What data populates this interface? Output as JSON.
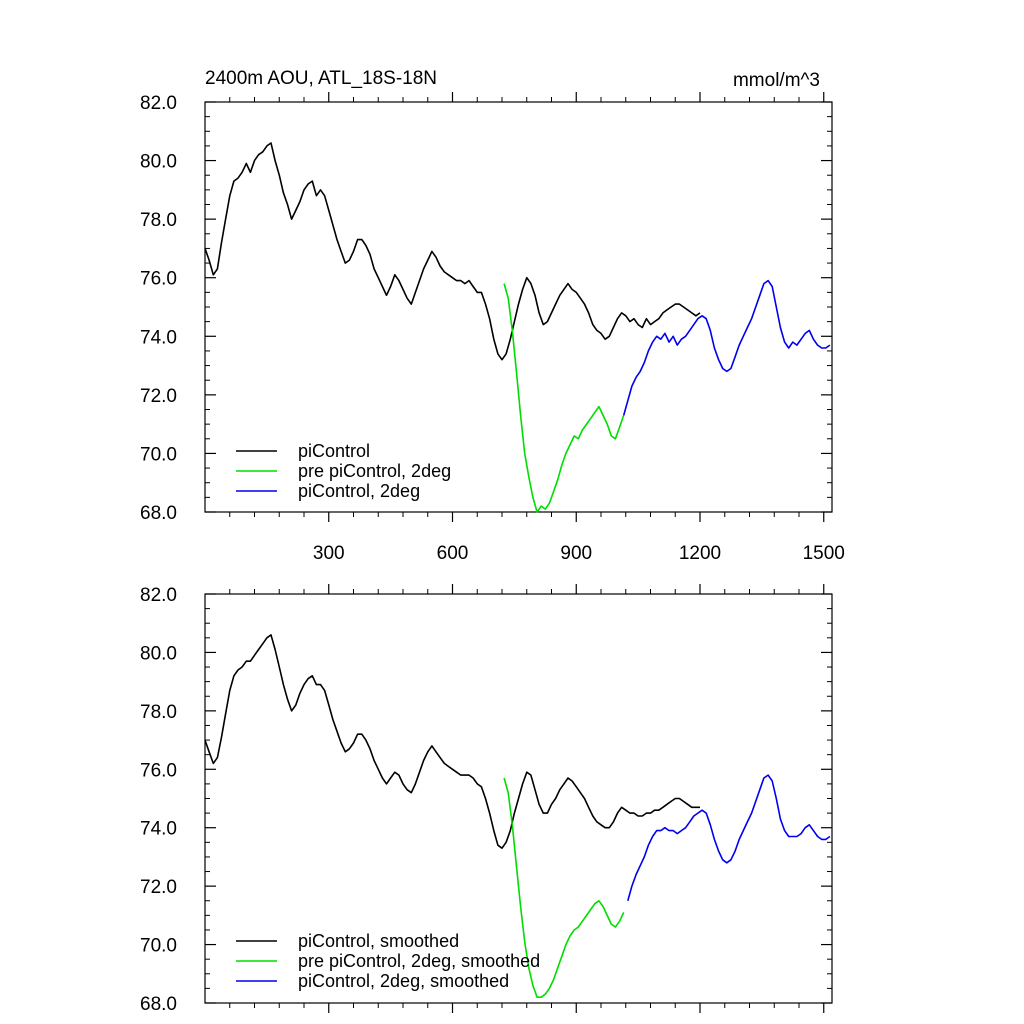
{
  "chart_data": [
    {
      "type": "line",
      "title": "2400m AOU, ATL_18S-18N",
      "units": "mmol/m^3",
      "xlim": [
        0,
        1520
      ],
      "ylim": [
        68,
        82
      ],
      "xticks": [
        300,
        600,
        900,
        1200,
        1500
      ],
      "yticks": [
        68,
        70,
        72,
        74,
        76,
        78,
        80,
        82
      ],
      "xtick_labels": [
        "300",
        "600",
        "900",
        "1200",
        "1500"
      ],
      "ytick_labels": [
        "68.0",
        "70.0",
        "72.0",
        "74.0",
        "76.0",
        "78.0",
        "80.0",
        "82.0"
      ],
      "grid": false,
      "legend": "bottom-left",
      "series": [
        {
          "name": "piControl",
          "color": "#000000",
          "x": [
            0,
            10,
            20,
            30,
            40,
            50,
            60,
            70,
            80,
            90,
            100,
            110,
            120,
            130,
            140,
            150,
            160,
            170,
            180,
            190,
            200,
            210,
            220,
            230,
            240,
            250,
            260,
            270,
            280,
            290,
            300,
            310,
            320,
            330,
            340,
            350,
            360,
            370,
            380,
            390,
            400,
            410,
            420,
            430,
            440,
            450,
            460,
            470,
            480,
            490,
            500,
            510,
            520,
            530,
            540,
            550,
            560,
            570,
            580,
            590,
            600,
            610,
            620,
            630,
            640,
            650,
            660,
            670,
            680,
            690,
            700,
            710,
            720,
            730,
            740,
            750,
            760,
            770,
            780,
            790,
            800,
            810,
            820,
            830,
            840,
            850,
            860,
            870,
            880,
            890,
            900,
            910,
            920,
            930,
            940,
            950,
            960,
            970,
            980,
            990,
            1000,
            1010,
            1020,
            1030,
            1040,
            1050,
            1060,
            1070,
            1080,
            1090,
            1100,
            1110,
            1120,
            1130,
            1140,
            1150,
            1160,
            1170,
            1180,
            1190,
            1200
          ],
          "y": [
            77.0,
            76.6,
            76.1,
            76.3,
            77.2,
            78.0,
            78.8,
            79.3,
            79.4,
            79.6,
            79.9,
            79.6,
            80.0,
            80.2,
            80.3,
            80.5,
            80.6,
            80.0,
            79.5,
            78.9,
            78.5,
            78.0,
            78.3,
            78.6,
            79.0,
            79.2,
            79.3,
            78.8,
            79.0,
            78.8,
            78.3,
            77.8,
            77.3,
            76.9,
            76.5,
            76.6,
            76.9,
            77.3,
            77.3,
            77.1,
            76.8,
            76.3,
            76.0,
            75.7,
            75.4,
            75.7,
            76.1,
            75.9,
            75.6,
            75.3,
            75.1,
            75.5,
            75.9,
            76.3,
            76.6,
            76.9,
            76.7,
            76.4,
            76.2,
            76.1,
            76.0,
            75.9,
            75.9,
            75.8,
            75.9,
            75.7,
            75.5,
            75.5,
            75.1,
            74.6,
            73.9,
            73.4,
            73.2,
            73.4,
            73.9,
            74.5,
            75.1,
            75.6,
            76.0,
            75.8,
            75.4,
            74.8,
            74.4,
            74.5,
            74.8,
            75.1,
            75.4,
            75.6,
            75.8,
            75.6,
            75.5,
            75.3,
            75.1,
            74.8,
            74.4,
            74.2,
            74.1,
            73.9,
            74.0,
            74.3,
            74.6,
            74.8,
            74.7,
            74.5,
            74.6,
            74.4,
            74.3,
            74.6,
            74.4,
            74.5,
            74.6,
            74.8,
            74.9,
            75.0,
            75.1,
            75.1,
            75.0,
            74.9,
            74.8,
            74.7,
            74.8
          ]
        },
        {
          "name": "pre piControl, 2deg",
          "color": "#00dd00",
          "x": [
            725,
            735,
            745,
            755,
            765,
            775,
            785,
            795,
            805,
            815,
            825,
            835,
            845,
            855,
            865,
            875,
            885,
            895,
            905,
            915,
            925,
            935,
            945,
            955,
            965,
            975,
            985,
            995,
            1005,
            1015
          ],
          "y": [
            75.8,
            75.3,
            74.2,
            72.8,
            71.3,
            70.0,
            69.2,
            68.5,
            68.0,
            68.2,
            68.1,
            68.3,
            68.7,
            69.1,
            69.6,
            70.0,
            70.3,
            70.6,
            70.5,
            70.8,
            71.0,
            71.2,
            71.4,
            71.6,
            71.3,
            71.0,
            70.6,
            70.5,
            70.9,
            71.3
          ]
        },
        {
          "name": "piControl, 2deg",
          "color": "#0000ee",
          "x": [
            1015,
            1025,
            1035,
            1045,
            1055,
            1065,
            1075,
            1085,
            1095,
            1105,
            1115,
            1125,
            1135,
            1145,
            1155,
            1165,
            1175,
            1185,
            1195,
            1205,
            1215,
            1225,
            1235,
            1245,
            1255,
            1265,
            1275,
            1285,
            1295,
            1305,
            1315,
            1325,
            1335,
            1345,
            1355,
            1365,
            1375,
            1385,
            1395,
            1405,
            1415,
            1425,
            1435,
            1445,
            1455,
            1465,
            1475,
            1485,
            1495,
            1505,
            1515
          ],
          "y": [
            71.3,
            71.8,
            72.3,
            72.6,
            72.8,
            73.1,
            73.5,
            73.8,
            74.0,
            73.9,
            74.1,
            73.8,
            74.0,
            73.7,
            73.9,
            74.0,
            74.2,
            74.4,
            74.6,
            74.7,
            74.6,
            74.2,
            73.6,
            73.2,
            72.9,
            72.8,
            72.9,
            73.3,
            73.7,
            74.0,
            74.3,
            74.6,
            75.0,
            75.4,
            75.8,
            75.9,
            75.7,
            75.0,
            74.3,
            73.8,
            73.6,
            73.8,
            73.7,
            73.9,
            74.1,
            74.2,
            73.9,
            73.7,
            73.6,
            73.6,
            73.7
          ]
        }
      ]
    },
    {
      "type": "line",
      "xlim": [
        0,
        1520
      ],
      "ylim": [
        68,
        82
      ],
      "xticks": [
        300,
        600,
        900,
        1200,
        1500
      ],
      "yticks": [
        68,
        70,
        72,
        74,
        76,
        78,
        80,
        82
      ],
      "ytick_labels": [
        "68.0",
        "70.0",
        "72.0",
        "74.0",
        "76.0",
        "78.0",
        "80.0",
        "82.0"
      ],
      "grid": false,
      "legend": "bottom-left",
      "series": [
        {
          "name": "piControl, smoothed",
          "color": "#000000",
          "x": [
            0,
            10,
            20,
            30,
            40,
            50,
            60,
            70,
            80,
            90,
            100,
            110,
            120,
            130,
            140,
            150,
            160,
            170,
            180,
            190,
            200,
            210,
            220,
            230,
            240,
            250,
            260,
            270,
            280,
            290,
            300,
            310,
            320,
            330,
            340,
            350,
            360,
            370,
            380,
            390,
            400,
            410,
            420,
            430,
            440,
            450,
            460,
            470,
            480,
            490,
            500,
            510,
            520,
            530,
            540,
            550,
            560,
            570,
            580,
            590,
            600,
            610,
            620,
            630,
            640,
            650,
            660,
            670,
            680,
            690,
            700,
            710,
            720,
            730,
            740,
            750,
            760,
            770,
            780,
            790,
            800,
            810,
            820,
            830,
            840,
            850,
            860,
            870,
            880,
            890,
            900,
            910,
            920,
            930,
            940,
            950,
            960,
            970,
            980,
            990,
            1000,
            1010,
            1020,
            1030,
            1040,
            1050,
            1060,
            1070,
            1080,
            1090,
            1100,
            1110,
            1120,
            1130,
            1140,
            1150,
            1160,
            1170,
            1180,
            1190,
            1200
          ],
          "y": [
            77.0,
            76.6,
            76.2,
            76.4,
            77.1,
            77.9,
            78.7,
            79.2,
            79.4,
            79.5,
            79.7,
            79.7,
            79.9,
            80.1,
            80.3,
            80.5,
            80.6,
            80.1,
            79.5,
            78.9,
            78.4,
            78.0,
            78.2,
            78.6,
            78.9,
            79.1,
            79.2,
            78.9,
            78.9,
            78.7,
            78.2,
            77.7,
            77.3,
            76.9,
            76.6,
            76.7,
            76.9,
            77.2,
            77.2,
            77.0,
            76.7,
            76.3,
            76.0,
            75.7,
            75.5,
            75.7,
            75.9,
            75.8,
            75.5,
            75.3,
            75.2,
            75.5,
            75.9,
            76.3,
            76.6,
            76.8,
            76.6,
            76.4,
            76.2,
            76.1,
            76.0,
            75.9,
            75.8,
            75.8,
            75.8,
            75.7,
            75.5,
            75.4,
            75.0,
            74.5,
            73.9,
            73.4,
            73.3,
            73.5,
            73.9,
            74.5,
            75.0,
            75.5,
            75.9,
            75.8,
            75.3,
            74.8,
            74.5,
            74.5,
            74.8,
            75.0,
            75.3,
            75.5,
            75.7,
            75.6,
            75.4,
            75.2,
            75.0,
            74.7,
            74.4,
            74.2,
            74.1,
            74.0,
            74.0,
            74.2,
            74.5,
            74.7,
            74.6,
            74.5,
            74.5,
            74.4,
            74.4,
            74.5,
            74.5,
            74.6,
            74.6,
            74.7,
            74.8,
            74.9,
            75.0,
            75.0,
            74.9,
            74.8,
            74.7,
            74.7,
            74.7
          ]
        },
        {
          "name": "pre piControl, 2deg, smoothed",
          "color": "#00dd00",
          "x": [
            725,
            735,
            745,
            755,
            765,
            775,
            785,
            795,
            805,
            815,
            825,
            835,
            845,
            855,
            865,
            875,
            885,
            895,
            905,
            915,
            925,
            935,
            945,
            955,
            965,
            975,
            985,
            995,
            1005,
            1015
          ],
          "y": [
            75.7,
            75.2,
            74.1,
            72.7,
            71.3,
            70.1,
            69.2,
            68.6,
            68.2,
            68.2,
            68.3,
            68.5,
            68.8,
            69.2,
            69.6,
            70.0,
            70.3,
            70.5,
            70.6,
            70.8,
            71.0,
            71.2,
            71.4,
            71.5,
            71.3,
            71.0,
            70.7,
            70.6,
            70.8,
            71.1
          ]
        },
        {
          "name": "piControl, 2deg, smoothed",
          "color": "#0000ee",
          "x": [
            1025,
            1035,
            1045,
            1055,
            1065,
            1075,
            1085,
            1095,
            1105,
            1115,
            1125,
            1135,
            1145,
            1155,
            1165,
            1175,
            1185,
            1195,
            1205,
            1215,
            1225,
            1235,
            1245,
            1255,
            1265,
            1275,
            1285,
            1295,
            1305,
            1315,
            1325,
            1335,
            1345,
            1355,
            1365,
            1375,
            1385,
            1395,
            1405,
            1415,
            1425,
            1435,
            1445,
            1455,
            1465,
            1475,
            1485,
            1495,
            1505,
            1515
          ],
          "y": [
            71.5,
            72.0,
            72.4,
            72.7,
            73.0,
            73.4,
            73.7,
            73.9,
            73.9,
            74.0,
            73.9,
            73.9,
            73.8,
            73.9,
            74.0,
            74.2,
            74.4,
            74.5,
            74.6,
            74.5,
            74.1,
            73.6,
            73.2,
            72.9,
            72.8,
            72.9,
            73.2,
            73.6,
            73.9,
            74.2,
            74.5,
            74.9,
            75.3,
            75.7,
            75.8,
            75.6,
            75.0,
            74.3,
            73.9,
            73.7,
            73.7,
            73.7,
            73.8,
            74.0,
            74.1,
            73.9,
            73.7,
            73.6,
            73.6,
            73.7
          ]
        }
      ]
    }
  ]
}
